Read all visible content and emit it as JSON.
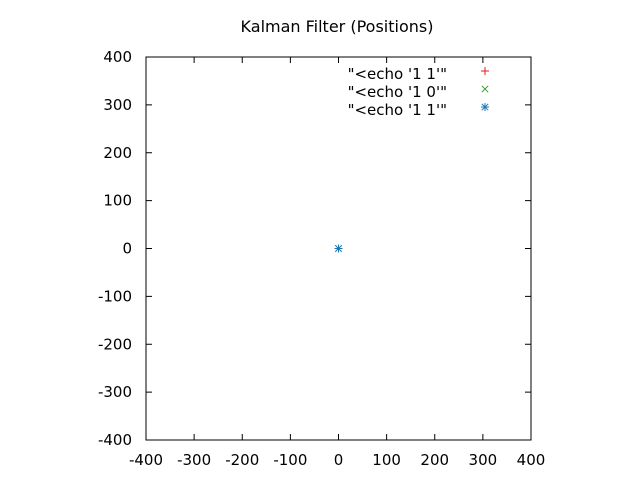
{
  "chart_data": {
    "type": "scatter",
    "title": "Kalman Filter (Positions)",
    "xlabel": "",
    "ylabel": "",
    "xlim": [
      -400,
      400
    ],
    "ylim": [
      -400,
      400
    ],
    "xticks": [
      -400,
      -300,
      -200,
      -100,
      0,
      100,
      200,
      300,
      400
    ],
    "yticks": [
      -400,
      -300,
      -200,
      -100,
      0,
      100,
      200,
      300,
      400
    ],
    "grid": false,
    "legend_position": "top-right",
    "series": [
      {
        "name": "\"<echo '1 1'\"",
        "marker": "plus",
        "color": "#e41a1c",
        "points": [
          {
            "x": 0,
            "y": 0
          }
        ]
      },
      {
        "name": "\"<echo '1 0'\"",
        "marker": "cross",
        "color": "#2ca02c",
        "points": [
          {
            "x": 0,
            "y": 0
          }
        ]
      },
      {
        "name": "\"<echo '1 1'\"",
        "marker": "star",
        "color": "#1f77b4",
        "points": [
          {
            "x": 0,
            "y": 0
          }
        ]
      }
    ]
  }
}
